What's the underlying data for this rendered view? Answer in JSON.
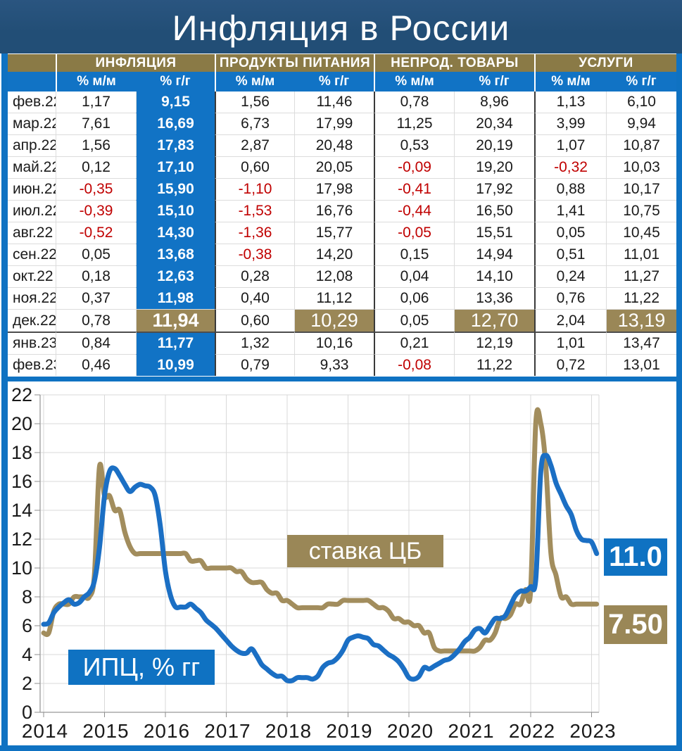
{
  "title": "Инфляция в России",
  "colors": {
    "navy": "#224E76",
    "navy_light": "#2A5580",
    "blue": "#0F72C2",
    "blue_cell": "#1173C5",
    "blue_line": "#1B6FC4",
    "gold_header": "#8A7A46",
    "gold": "#9A8757",
    "gold_line": "#A28D5D",
    "negative": "#C00000",
    "grid": "#D9D9D9"
  },
  "table": {
    "groups": [
      {
        "label": "ИНФЛЯЦИЯ"
      },
      {
        "label": "ПРОДУКТЫ ПИТАНИЯ"
      },
      {
        "label": "НЕПРОД. ТОВАРЫ"
      },
      {
        "label": "УСЛУГИ"
      }
    ],
    "subheaders": [
      "% м/м",
      "% г/г"
    ],
    "rows": [
      {
        "month": "фев.22",
        "values": [
          "1,17",
          "9,15",
          "1,56",
          "11,46",
          "0,78",
          "8,96",
          "1,13",
          "6,10"
        ]
      },
      {
        "month": "мар.22",
        "values": [
          "7,61",
          "16,69",
          "6,73",
          "17,99",
          "11,25",
          "20,34",
          "3,99",
          "9,94"
        ]
      },
      {
        "month": "апр.22",
        "values": [
          "1,56",
          "17,83",
          "2,87",
          "20,48",
          "0,53",
          "20,19",
          "1,07",
          "10,87"
        ]
      },
      {
        "month": "май.22",
        "values": [
          "0,12",
          "17,10",
          "0,60",
          "20,05",
          "-0,09",
          "19,20",
          "-0,32",
          "10,03"
        ]
      },
      {
        "month": "июн.22",
        "values": [
          "-0,35",
          "15,90",
          "-1,10",
          "17,98",
          "-0,41",
          "17,92",
          "0,88",
          "10,17"
        ]
      },
      {
        "month": "июл.22",
        "values": [
          "-0,39",
          "15,10",
          "-1,53",
          "16,76",
          "-0,44",
          "16,50",
          "1,41",
          "10,75"
        ]
      },
      {
        "month": "авг.22",
        "values": [
          "-0,52",
          "14,30",
          "-1,36",
          "15,77",
          "-0,05",
          "15,51",
          "0,05",
          "10,45"
        ]
      },
      {
        "month": "сен.22",
        "values": [
          "0,05",
          "13,68",
          "-0,38",
          "14,20",
          "0,15",
          "14,94",
          "0,51",
          "11,01"
        ]
      },
      {
        "month": "окт.22",
        "values": [
          "0,18",
          "12,63",
          "0,28",
          "12,08",
          "0,04",
          "14,10",
          "0,24",
          "11,27"
        ]
      },
      {
        "month": "ноя.22",
        "values": [
          "0,37",
          "11,98",
          "0,40",
          "11,12",
          "0,06",
          "13,36",
          "0,76",
          "11,22"
        ]
      },
      {
        "month": "дек.22",
        "values": [
          "0,78",
          "11,94",
          "0,60",
          "10,29",
          "0,05",
          "12,70",
          "2,04",
          "13,19"
        ],
        "highlight": true
      },
      {
        "month": "янв.23",
        "values": [
          "0,84",
          "11,77",
          "1,32",
          "10,16",
          "0,21",
          "12,19",
          "1,01",
          "13,47"
        ],
        "year_break": true
      },
      {
        "month": "фев.23",
        "values": [
          "0,46",
          "10,99",
          "0,79",
          "9,33",
          "-0,08",
          "11,22",
          "0,72",
          "13,01"
        ]
      }
    ]
  },
  "chart_data": {
    "type": "line",
    "title": "",
    "x_start": "2014-01",
    "x_end": "2023-02",
    "x_tick_labels": [
      "2014",
      "2015",
      "2016",
      "2017",
      "2018",
      "2019",
      "2020",
      "2021",
      "2022",
      "2023"
    ],
    "ylim": [
      0,
      22
    ],
    "ytick_step": 2,
    "grid": true,
    "legend_position": "on-chart-boxes",
    "series": [
      {
        "name": "ставка ЦБ",
        "color": "#A28D5D",
        "values": [
          5.5,
          5.5,
          7,
          7.5,
          7.5,
          7.5,
          8,
          8,
          8,
          8,
          9.5,
          17,
          15,
          15,
          14,
          14,
          12.5,
          11.5,
          11,
          11,
          11,
          11,
          11,
          11,
          11,
          11,
          11,
          11,
          11,
          10.5,
          10.5,
          10.5,
          10,
          10,
          10,
          10,
          10,
          10,
          9.75,
          9.75,
          9.25,
          9,
          9,
          9,
          8.5,
          8.25,
          8.25,
          7.75,
          7.75,
          7.5,
          7.25,
          7.25,
          7.25,
          7.25,
          7.25,
          7.25,
          7.5,
          7.5,
          7.5,
          7.75,
          7.75,
          7.75,
          7.75,
          7.75,
          7.75,
          7.5,
          7.25,
          7.25,
          7,
          6.5,
          6.5,
          6.25,
          6.25,
          6,
          6,
          5.5,
          5.5,
          4.5,
          4.25,
          4.25,
          4.25,
          4.25,
          4.25,
          4.25,
          4.25,
          4.25,
          4.5,
          5,
          5,
          5.5,
          6.5,
          6.5,
          6.75,
          7.5,
          7.5,
          8.5,
          8.5,
          20,
          20,
          17,
          11,
          9.5,
          8,
          8,
          7.5,
          7.5,
          7.5,
          7.5,
          7.5,
          7.5
        ]
      },
      {
        "name": "ИПЦ, % гг",
        "color": "#1B6FC4",
        "values": [
          6.1,
          6.2,
          6.9,
          7.3,
          7.6,
          7.8,
          7.5,
          7.6,
          8,
          8.3,
          9.1,
          11.4,
          15,
          16.7,
          16.9,
          16.4,
          15.8,
          15.3,
          15.6,
          15.8,
          15.7,
          15.6,
          15,
          12.9,
          9.8,
          8.1,
          7.3,
          7.3,
          7.3,
          7.5,
          7.2,
          6.9,
          6.4,
          6.1,
          5.8,
          5.4,
          5,
          4.6,
          4.3,
          4.1,
          4.1,
          4.4,
          3.9,
          3.3,
          3,
          2.7,
          2.5,
          2.5,
          2.2,
          2.2,
          2.4,
          2.4,
          2.4,
          2.3,
          2.5,
          3.1,
          3.4,
          3.5,
          3.8,
          4.3,
          5,
          5.2,
          5.3,
          5.2,
          5.1,
          4.7,
          4.6,
          4.3,
          4,
          3.8,
          3.5,
          3,
          2.4,
          2.3,
          2.5,
          3.1,
          3,
          3.2,
          3.4,
          3.6,
          3.7,
          4,
          4.4,
          4.9,
          5.2,
          5.7,
          5.8,
          5.5,
          6,
          6.5,
          6.5,
          6.7,
          7.4,
          8.1,
          8.4,
          8.4,
          8.7,
          9.2,
          16.7,
          17.8,
          17.1,
          15.9,
          15.1,
          14.3,
          13.7,
          12.6,
          12,
          11.9,
          11.8,
          11
        ]
      }
    ],
    "end_labels": [
      {
        "series": "ИПЦ, % гг",
        "text": "11.0",
        "color": "#0F72C2"
      },
      {
        "series": "ставка ЦБ",
        "text": "7.50",
        "color": "#9A8757"
      }
    ]
  }
}
